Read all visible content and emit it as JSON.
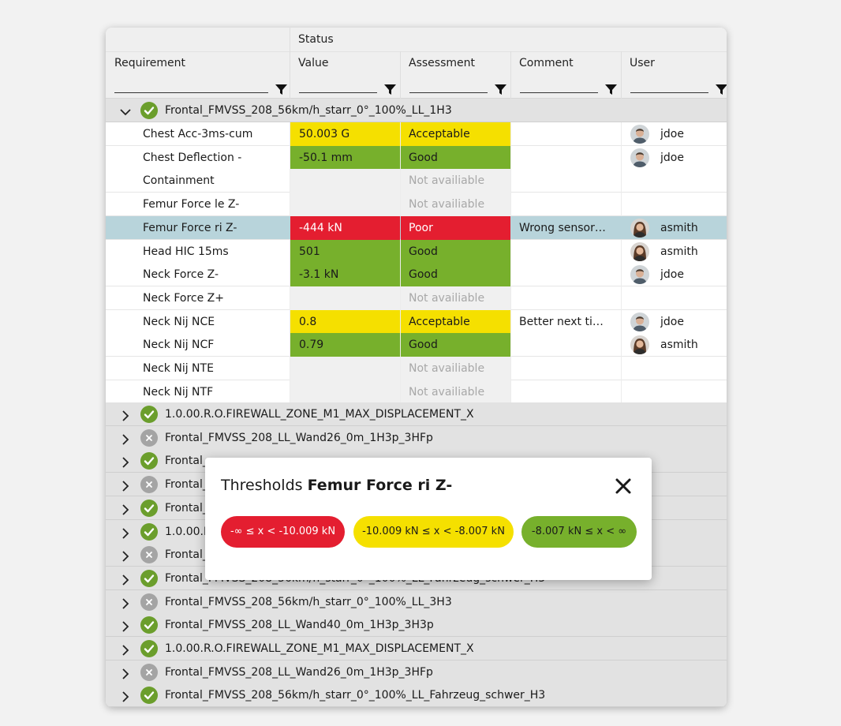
{
  "columns": {
    "status_group": "Status",
    "requirement": "Requirement",
    "value": "Value",
    "assessment": "Assessment",
    "comment": "Comment",
    "user": "User"
  },
  "colors": {
    "good": "#77b02c",
    "acceptable": "#f5e000",
    "poor": "#e41e30",
    "not_available": "#f0f0f0",
    "selected_row": "#b8d4db",
    "group_row": "#e2e2e2"
  },
  "expanded_group": {
    "name": "Frontal_FMVSS_208_56km/h_starr_0°_100%_LL_1H3",
    "status": "ok",
    "rows": [
      {
        "requirement": "Chest Acc-3ms-cum",
        "value": "50.003 G",
        "assessment": "Acceptable",
        "level": "acceptable",
        "comment": "",
        "user": "jdoe",
        "avatar": "male"
      },
      {
        "requirement": "Chest Deflection -",
        "value": "-50.1 mm",
        "assessment": "Good",
        "level": "good",
        "comment": "",
        "user": "jdoe",
        "avatar": "male"
      },
      {
        "requirement": "Containment",
        "value": "",
        "assessment": "Not availiable",
        "level": "na",
        "comment": "",
        "user": "",
        "avatar": ""
      },
      {
        "requirement": "Femur Force le Z-",
        "value": "",
        "assessment": "Not availiable",
        "level": "na",
        "comment": "",
        "user": "",
        "avatar": ""
      },
      {
        "requirement": "Femur Force ri Z-",
        "value": "-444 kN",
        "assessment": "Poor",
        "level": "poor",
        "comment": "Wrong sensor…",
        "user": "asmith",
        "avatar": "female",
        "selected": true
      },
      {
        "requirement": "Head HIC 15ms",
        "value": "501",
        "assessment": "Good",
        "level": "good",
        "comment": "",
        "user": "asmith",
        "avatar": "female"
      },
      {
        "requirement": "Neck Force Z-",
        "value": "-3.1 kN",
        "assessment": "Good",
        "level": "good",
        "comment": "",
        "user": "jdoe",
        "avatar": "male"
      },
      {
        "requirement": "Neck Force Z+",
        "value": "",
        "assessment": "Not availiable",
        "level": "na",
        "comment": "",
        "user": "",
        "avatar": ""
      },
      {
        "requirement": "Neck Nij NCE",
        "value": "0.8",
        "assessment": "Acceptable",
        "level": "acceptable",
        "comment": "Better next ti…",
        "user": "jdoe",
        "avatar": "male"
      },
      {
        "requirement": "Neck Nij NCF",
        "value": "0.79",
        "assessment": "Good",
        "level": "good",
        "comment": "",
        "user": "asmith",
        "avatar": "female"
      },
      {
        "requirement": "Neck Nij NTE",
        "value": "",
        "assessment": "Not availiable",
        "level": "na",
        "comment": "",
        "user": "",
        "avatar": ""
      },
      {
        "requirement": "Neck Nij NTF",
        "value": "",
        "assessment": "Not availiable",
        "level": "na",
        "comment": "",
        "user": "",
        "avatar": ""
      }
    ]
  },
  "collapsed_groups": [
    {
      "name": "1.0.00.R.O.FIREWALL_ZONE_M1_MAX_DISPLACEMENT_X",
      "status": "ok"
    },
    {
      "name": "Frontal_FMVSS_208_LL_Wand26_0m_1H3p_3HFp",
      "status": "fail"
    },
    {
      "name": "Frontal_",
      "status": "ok"
    },
    {
      "name": "Frontal_",
      "status": "fail"
    },
    {
      "name": "Frontal_",
      "status": "ok"
    },
    {
      "name": "1.0.00.R",
      "status": "ok"
    },
    {
      "name": "Frontal_",
      "status": "fail"
    },
    {
      "name": "Frontal_FMVSS_208_56km/h_starr_0°_100%_LL_Fahrzeug_schwer_H3",
      "status": "ok"
    },
    {
      "name": "Frontal_FMVSS_208_56km/h_starr_0°_100%_LL_3H3",
      "status": "fail"
    },
    {
      "name": "Frontal_FMVSS_208_LL_Wand40_0m_1H3p_3H3p",
      "status": "ok"
    },
    {
      "name": "1.0.00.R.O.FIREWALL_ZONE_M1_MAX_DISPLACEMENT_X",
      "status": "ok"
    },
    {
      "name": "Frontal_FMVSS_208_LL_Wand26_0m_1H3p_3HFp",
      "status": "fail"
    },
    {
      "name": "Frontal_FMVSS_208_56km/h_starr_0°_100%_LL_Fahrzeug_schwer_H3",
      "status": "ok"
    }
  ],
  "dialog": {
    "title_prefix": "Thresholds",
    "title_subject": "Femur Force ri Z-",
    "close_icon": "close-icon",
    "chips": [
      {
        "label": "-∞ ≤ x < -10.009 kN",
        "level": "poor"
      },
      {
        "label": "-10.009 kN ≤ x < -8.007 kN",
        "level": "acceptable"
      },
      {
        "label": "-8.007 kN ≤ x < ∞",
        "level": "good"
      }
    ]
  }
}
